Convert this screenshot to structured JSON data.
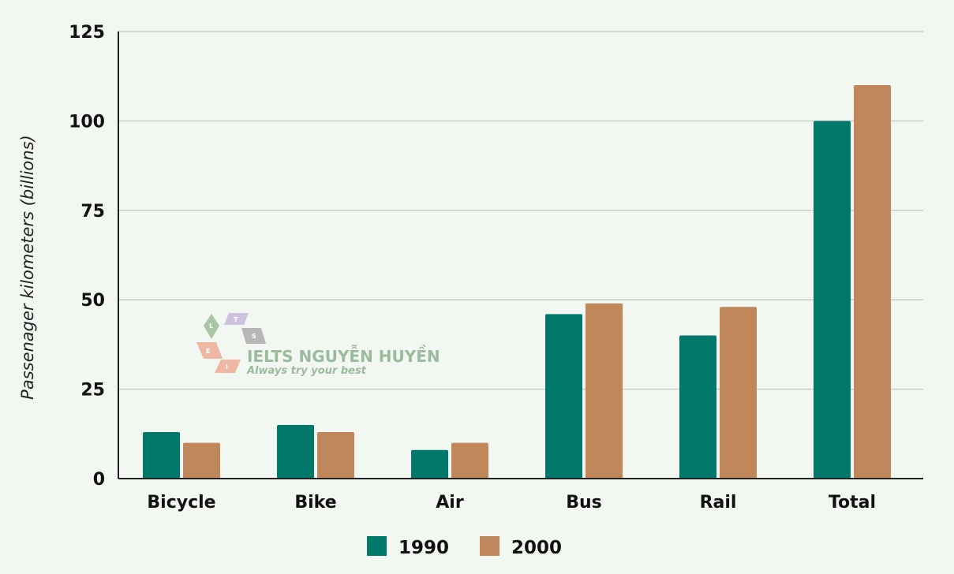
{
  "chart_data": {
    "type": "bar",
    "title": "",
    "xlabel": "",
    "ylabel": "Passenager kilometers (billions)",
    "categories": [
      "Bicycle",
      "Bike",
      "Air",
      "Bus",
      "Rail",
      "Total"
    ],
    "series": [
      {
        "name": "1990",
        "color": "#00796b",
        "values": [
          13,
          15,
          8,
          46,
          40,
          100
        ]
      },
      {
        "name": "2000",
        "color": "#c0875a",
        "values": [
          10,
          13,
          10,
          49,
          48,
          110
        ]
      }
    ],
    "ylim": [
      0,
      125
    ],
    "yticks": [
      "0",
      "25",
      "50",
      "75",
      "100",
      "125"
    ],
    "grid": true,
    "legend_position": "bottom-center"
  },
  "watermark": {
    "title": "IELTS NGUYỄN HUYỀN",
    "subtitle": "Always try your best",
    "letters": [
      "L",
      "T",
      "S",
      "E",
      "I"
    ]
  }
}
